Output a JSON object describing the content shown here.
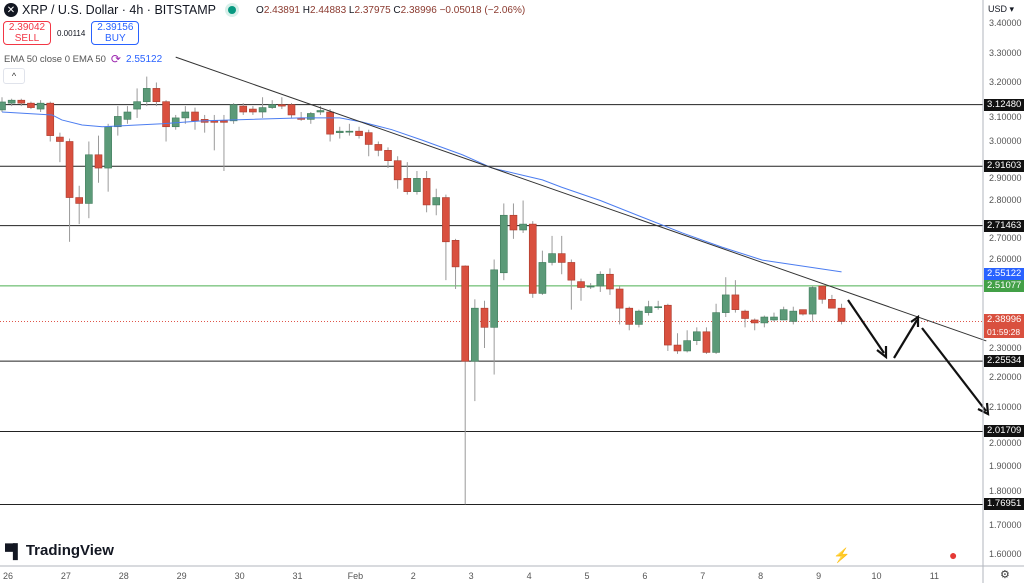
{
  "header": {
    "symbol_icon": "xrp-logo-icon",
    "title": "XRP / U.S. Dollar · 4h · BITSTAMP",
    "market_status_icon": "market-open-dot-icon",
    "open_label": "O",
    "open": "2.43891",
    "high_label": "H",
    "high": "2.44883",
    "low_label": "L",
    "low": "2.37975",
    "close_label": "C",
    "close": "2.38996",
    "change": "−0.05018 (−2.06%)"
  },
  "trade": {
    "sell_price": "2.39042",
    "sell_label": "SELL",
    "spread": "0.00114",
    "buy_price": "2.39156",
    "buy_label": "BUY"
  },
  "indicator": {
    "label": "EMA 50 close 0 EMA 50",
    "icon": "sync-icon",
    "value": "2.55122"
  },
  "collapse_icon": "chevron-up-icon",
  "branding": {
    "logo_text": "TradingView"
  },
  "price_axis": {
    "currency": "USD",
    "ticks": [
      "3.40000",
      "3.30000",
      "3.20000",
      "3.10000",
      "3.00000",
      "2.90000",
      "2.80000",
      "2.70000",
      "2.60000",
      "2.30000",
      "2.20000",
      "2.10000",
      "2.00000",
      "1.90000",
      "1.80000",
      "1.70000",
      "1.60000"
    ],
    "settings_icon": "gear-icon"
  },
  "time_axis": {
    "labels": [
      "26",
      "27",
      "28",
      "29",
      "30",
      "31",
      "Feb",
      "2",
      "3",
      "4",
      "5",
      "6",
      "7",
      "8",
      "9",
      "10",
      "11"
    ]
  },
  "bottom_icons": [
    "lightning-icon",
    "us-flag-icon"
  ],
  "colors": {
    "up": "#5b9a78",
    "down": "#d9503f",
    "ema": "#4c7df0",
    "level": "#222222",
    "green_level": "#4caf50",
    "current_price": "#e0554a"
  },
  "chart_data": {
    "type": "candlestick",
    "timeframe": "4h",
    "ylim": [
      1.56,
      3.42
    ],
    "candles_ohlc": [
      [
        3.107,
        3.15,
        3.1,
        3.134
      ],
      [
        3.13,
        3.145,
        3.12,
        3.14
      ],
      [
        3.14,
        3.145,
        3.12,
        3.13
      ],
      [
        3.13,
        3.135,
        3.11,
        3.115
      ],
      [
        3.11,
        3.14,
        3.1,
        3.13
      ],
      [
        3.13,
        3.135,
        3.0,
        3.02
      ],
      [
        3.015,
        3.03,
        2.93,
        3.0
      ],
      [
        3.0,
        3.01,
        2.66,
        2.81
      ],
      [
        2.81,
        2.85,
        2.72,
        2.79
      ],
      [
        2.79,
        3.0,
        2.74,
        2.955
      ],
      [
        2.955,
        3.02,
        2.86,
        2.91
      ],
      [
        2.91,
        3.06,
        2.83,
        3.05
      ],
      [
        3.05,
        3.12,
        3.02,
        3.085
      ],
      [
        3.075,
        3.12,
        3.06,
        3.1
      ],
      [
        3.11,
        3.18,
        3.08,
        3.135
      ],
      [
        3.135,
        3.22,
        3.12,
        3.18
      ],
      [
        3.18,
        3.2,
        3.12,
        3.135
      ],
      [
        3.135,
        3.14,
        3.0,
        3.05
      ],
      [
        3.05,
        3.09,
        3.04,
        3.08
      ],
      [
        3.08,
        3.12,
        3.06,
        3.1
      ],
      [
        3.1,
        3.115,
        3.04,
        3.07
      ],
      [
        3.075,
        3.09,
        3.03,
        3.065
      ],
      [
        3.07,
        3.09,
        2.97,
        3.065
      ],
      [
        3.07,
        3.09,
        2.9,
        3.065
      ],
      [
        3.07,
        3.13,
        3.06,
        3.125
      ],
      [
        3.12,
        3.13,
        3.09,
        3.1
      ],
      [
        3.11,
        3.12,
        3.09,
        3.1
      ],
      [
        3.1,
        3.15,
        3.08,
        3.115
      ],
      [
        3.115,
        3.14,
        3.11,
        3.125
      ],
      [
        3.125,
        3.15,
        3.11,
        3.12
      ],
      [
        3.125,
        3.13,
        3.08,
        3.09
      ],
      [
        3.08,
        3.1,
        3.07,
        3.075
      ],
      [
        3.075,
        3.1,
        3.06,
        3.095
      ],
      [
        3.1,
        3.12,
        3.09,
        3.105
      ],
      [
        3.1,
        3.11,
        3.0,
        3.025
      ],
      [
        3.03,
        3.05,
        3.01,
        3.035
      ],
      [
        3.035,
        3.06,
        3.02,
        3.035
      ],
      [
        3.035,
        3.05,
        3.01,
        3.02
      ],
      [
        3.03,
        3.04,
        2.95,
        2.99
      ],
      [
        2.99,
        3.0,
        2.95,
        2.97
      ],
      [
        2.97,
        2.98,
        2.91,
        2.935
      ],
      [
        2.935,
        2.95,
        2.84,
        2.87
      ],
      [
        2.875,
        2.93,
        2.82,
        2.83
      ],
      [
        2.83,
        2.9,
        2.82,
        2.875
      ],
      [
        2.875,
        2.9,
        2.76,
        2.785
      ],
      [
        2.785,
        2.84,
        2.75,
        2.81
      ],
      [
        2.81,
        2.82,
        2.53,
        2.66
      ],
      [
        2.665,
        2.67,
        2.5,
        2.575
      ],
      [
        2.578,
        2.58,
        1.77,
        2.255
      ],
      [
        2.255,
        2.465,
        2.12,
        2.435
      ],
      [
        2.435,
        2.46,
        2.3,
        2.37
      ],
      [
        2.37,
        2.6,
        2.21,
        2.565
      ],
      [
        2.555,
        2.79,
        2.53,
        2.75
      ],
      [
        2.75,
        2.79,
        2.67,
        2.7
      ],
      [
        2.7,
        2.8,
        2.69,
        2.72
      ],
      [
        2.72,
        2.73,
        2.47,
        2.485
      ],
      [
        2.485,
        2.63,
        2.48,
        2.59
      ],
      [
        2.59,
        2.68,
        2.58,
        2.62
      ],
      [
        2.62,
        2.68,
        2.55,
        2.59
      ],
      [
        2.59,
        2.6,
        2.43,
        2.53
      ],
      [
        2.525,
        2.535,
        2.46,
        2.505
      ],
      [
        2.51,
        2.52,
        2.5,
        2.51
      ],
      [
        2.51,
        2.56,
        2.49,
        2.55
      ],
      [
        2.55,
        2.57,
        2.48,
        2.5
      ],
      [
        2.5,
        2.51,
        2.38,
        2.435
      ],
      [
        2.435,
        2.44,
        2.36,
        2.38
      ],
      [
        2.38,
        2.43,
        2.37,
        2.425
      ],
      [
        2.42,
        2.46,
        2.41,
        2.44
      ],
      [
        2.44,
        2.46,
        2.43,
        2.44
      ],
      [
        2.445,
        2.45,
        2.29,
        2.31
      ],
      [
        2.31,
        2.35,
        2.28,
        2.29
      ],
      [
        2.29,
        2.36,
        2.285,
        2.325
      ],
      [
        2.325,
        2.37,
        2.31,
        2.355
      ],
      [
        2.355,
        2.37,
        2.28,
        2.285
      ],
      [
        2.285,
        2.45,
        2.28,
        2.42
      ],
      [
        2.42,
        2.54,
        2.405,
        2.48
      ],
      [
        2.48,
        2.53,
        2.42,
        2.43
      ],
      [
        2.425,
        2.43,
        2.37,
        2.4
      ],
      [
        2.395,
        2.4,
        2.36,
        2.385
      ],
      [
        2.385,
        2.41,
        2.37,
        2.405
      ],
      [
        2.395,
        2.42,
        2.39,
        2.405
      ],
      [
        2.395,
        2.44,
        2.395,
        2.43
      ],
      [
        2.39,
        2.44,
        2.38,
        2.425
      ],
      [
        2.43,
        2.43,
        2.41,
        2.415
      ],
      [
        2.415,
        2.51,
        2.39,
        2.505
      ],
      [
        2.51,
        2.51,
        2.45,
        2.465
      ],
      [
        2.465,
        2.48,
        2.45,
        2.435
      ],
      [
        2.435,
        2.45,
        2.38,
        2.39
      ]
    ],
    "ema50": [
      [
        0,
        3.1
      ],
      [
        5.2,
        3.09
      ],
      [
        6.2,
        3.073
      ],
      [
        8.3,
        3.056
      ],
      [
        10.4,
        3.05
      ],
      [
        16.6,
        3.06
      ],
      [
        20.7,
        3.07
      ],
      [
        31,
        3.08
      ],
      [
        35,
        3.08
      ],
      [
        37.3,
        3.066
      ],
      [
        40.4,
        3.04
      ],
      [
        43.5,
        3.005
      ],
      [
        47.7,
        2.955
      ],
      [
        50.8,
        2.91
      ],
      [
        53.9,
        2.886
      ],
      [
        56,
        2.87
      ],
      [
        58,
        2.845
      ],
      [
        62,
        2.8
      ],
      [
        66.3,
        2.744
      ],
      [
        70.5,
        2.69
      ],
      [
        74.6,
        2.642
      ],
      [
        78.8,
        2.598
      ],
      [
        82.9,
        2.578
      ],
      [
        87,
        2.558
      ]
    ],
    "levels": [
      "3.12480",
      "2.91603",
      "2.71463",
      "2.25534",
      "2.01709",
      "1.76951"
    ],
    "green_level": "2.51077",
    "ema_tag": "2.55122",
    "current_price": "2.38996",
    "countdown": "01:59:28",
    "trendline": [
      [
        18,
        3.286
      ],
      [
        102,
        2.324
      ]
    ]
  }
}
